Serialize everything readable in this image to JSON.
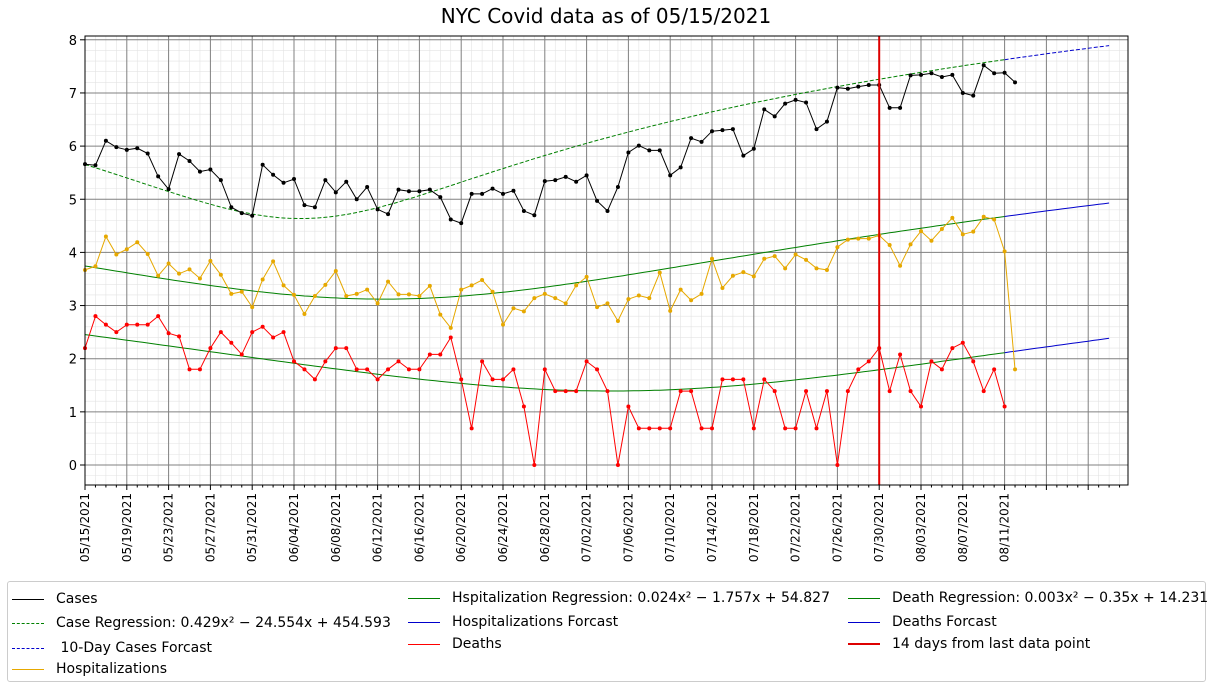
{
  "chart_data": {
    "type": "line",
    "title": "NYC Covid data as of 05/15/2021",
    "xlabel": "",
    "ylabel": "",
    "y_range": [
      -0.4,
      8.1
    ],
    "y_ticks": [
      "0",
      "1",
      "2",
      "3",
      "4",
      "5",
      "6",
      "7",
      "8"
    ],
    "x_start_date": "05/15/2021",
    "x_tick_labels": [
      "05/15/2021",
      "05/19/2021",
      "05/23/2021",
      "05/27/2021",
      "05/31/2021",
      "06/04/2021",
      "06/08/2021",
      "06/12/2021",
      "06/16/2021",
      "06/20/2021",
      "06/24/2021",
      "06/28/2021",
      "07/02/2021",
      "07/06/2021",
      "07/10/2021",
      "07/14/2021",
      "07/18/2021",
      "07/22/2021",
      "07/26/2021",
      "07/30/2021",
      "08/03/2021",
      "08/07/2021",
      "08/11/2021"
    ],
    "grid": "major and minor",
    "legend_position": "below plot, three columns",
    "vertical_marker_label": "14 days from last data point",
    "series": [
      {
        "name": "Cases",
        "color": "#000000",
        "marker": "dot",
        "values": [
          5.66,
          5.64,
          6.1,
          5.98,
          5.93,
          5.96,
          5.86,
          5.43,
          5.19,
          5.85,
          5.72,
          5.52,
          5.56,
          5.36,
          4.85,
          4.74,
          4.69,
          5.65,
          5.46,
          5.31,
          5.38,
          4.89,
          4.85,
          5.36,
          5.13,
          5.33,
          5.0,
          5.23,
          4.81,
          4.72,
          5.18,
          5.15,
          5.15,
          5.18,
          5.04,
          4.62,
          4.55,
          5.1,
          5.1,
          5.2,
          5.1,
          5.16,
          4.78,
          4.7,
          5.34,
          5.36,
          5.42,
          5.33,
          5.45,
          4.97,
          4.78,
          5.23,
          5.88,
          6.01,
          5.92,
          5.92,
          5.45,
          5.6,
          6.15,
          6.08,
          6.28,
          6.3,
          6.32,
          5.82,
          5.95,
          6.69,
          6.56,
          6.8,
          6.87,
          6.82,
          6.32,
          6.46,
          7.1,
          7.08,
          7.12,
          7.15,
          7.15,
          6.72,
          6.72,
          7.33,
          7.34,
          7.37,
          7.3,
          7.34,
          7.0,
          6.95,
          7.52,
          7.37,
          7.38,
          7.2
        ]
      },
      {
        "name": "Hospitalizations",
        "color": "#e6a800",
        "marker": "dot",
        "values": [
          3.67,
          3.74,
          4.3,
          3.96,
          4.06,
          4.19,
          3.97,
          3.56,
          3.79,
          3.6,
          3.68,
          3.51,
          3.84,
          3.58,
          3.22,
          3.26,
          2.97,
          3.49,
          3.83,
          3.38,
          3.2,
          2.84,
          3.18,
          3.39,
          3.65,
          3.18,
          3.22,
          3.3,
          3.04,
          3.45,
          3.21,
          3.21,
          3.18,
          3.37,
          2.83,
          2.58,
          3.3,
          3.38,
          3.48,
          3.26,
          2.64,
          2.95,
          2.89,
          3.14,
          3.22,
          3.14,
          3.04,
          3.38,
          3.54,
          2.97,
          3.04,
          2.71,
          3.12,
          3.19,
          3.14,
          3.62,
          2.9,
          3.3,
          3.1,
          3.22,
          3.88,
          3.33,
          3.56,
          3.63,
          3.55,
          3.88,
          3.93,
          3.7,
          3.96,
          3.86,
          3.7,
          3.67,
          4.1,
          4.24,
          4.26,
          4.26,
          4.32,
          4.14,
          3.75,
          4.15,
          4.4,
          4.22,
          4.44,
          4.65,
          4.34,
          4.39,
          4.67,
          4.62,
          4.02,
          1.8
        ]
      },
      {
        "name": "Deaths",
        "color": "#ff0000",
        "marker": "dot",
        "values": [
          2.2,
          2.8,
          2.64,
          2.5,
          2.64,
          2.64,
          2.64,
          2.8,
          2.48,
          2.42,
          1.8,
          1.8,
          2.2,
          2.5,
          2.3,
          2.08,
          2.5,
          2.6,
          2.4,
          2.5,
          1.95,
          1.8,
          1.61,
          1.95,
          2.2,
          2.2,
          1.8,
          1.8,
          1.61,
          1.8,
          1.95,
          1.8,
          1.8,
          2.08,
          2.08,
          2.4,
          1.61,
          0.69,
          1.95,
          1.61,
          1.61,
          1.8,
          1.1,
          0.0,
          1.8,
          1.39,
          1.39,
          1.39,
          1.95,
          1.8,
          1.39,
          0.0,
          1.1,
          0.69,
          0.69,
          0.69,
          0.69,
          1.39,
          1.39,
          0.69,
          0.69,
          1.61,
          1.61,
          1.61,
          0.69,
          1.61,
          1.39,
          0.69,
          0.69,
          1.39,
          0.69,
          1.39,
          0.0,
          1.39,
          1.8,
          1.95,
          2.2,
          1.39,
          2.08,
          1.39,
          1.1,
          1.95,
          1.8,
          2.2,
          2.3,
          1.95,
          1.39,
          1.8,
          1.1
        ]
      },
      {
        "name": "Case Regression: 0.429x² − 24.554x + 454.593",
        "color": "#008000",
        "style": "dashed",
        "fit": {
          "a": 0.429,
          "b": -24.554,
          "c": 454.593
        }
      },
      {
        "name": "Hspitalization Regression: 0.024x² − 1.757x + 54.827",
        "color": "#008000",
        "style": "solid",
        "fit": {
          "a": 0.024,
          "b": -1.757,
          "c": 54.827
        }
      },
      {
        "name": "Death Regression: 0.003x² − 0.35x + 14.231",
        "color": "#008000",
        "style": "solid",
        "fit": {
          "a": 0.003,
          "b": -0.35,
          "c": 14.231
        }
      },
      {
        "name": "10-Day Cases Forcast",
        "color": "#0000cc",
        "style": "dashed",
        "extends": "Case Regression"
      },
      {
        "name": "Hospitalizations Forcast",
        "color": "#0000cc",
        "style": "solid",
        "extends": "Hspitalization Regression"
      },
      {
        "name": "Deaths Forcast",
        "color": "#0000cc",
        "style": "solid",
        "extends": "Death Regression"
      }
    ]
  },
  "legend": {
    "cases": "Cases",
    "case_regression": "Case Regression: 0.429x² − 24.554x + 454.593",
    "cases_forecast": " 10-Day Cases Forcast",
    "hospitalizations": "Hospitalizations",
    "hosp_regression": "Hspitalization Regression: 0.024x² − 1.757x + 54.827",
    "hosp_forecast": "Hospitalizations Forcast",
    "deaths": "Deaths",
    "death_regression": "Death Regression: 0.003x² − 0.35x + 14.231",
    "deaths_forecast": "Deaths Forcast",
    "marker_line": "14 days from last data point"
  }
}
